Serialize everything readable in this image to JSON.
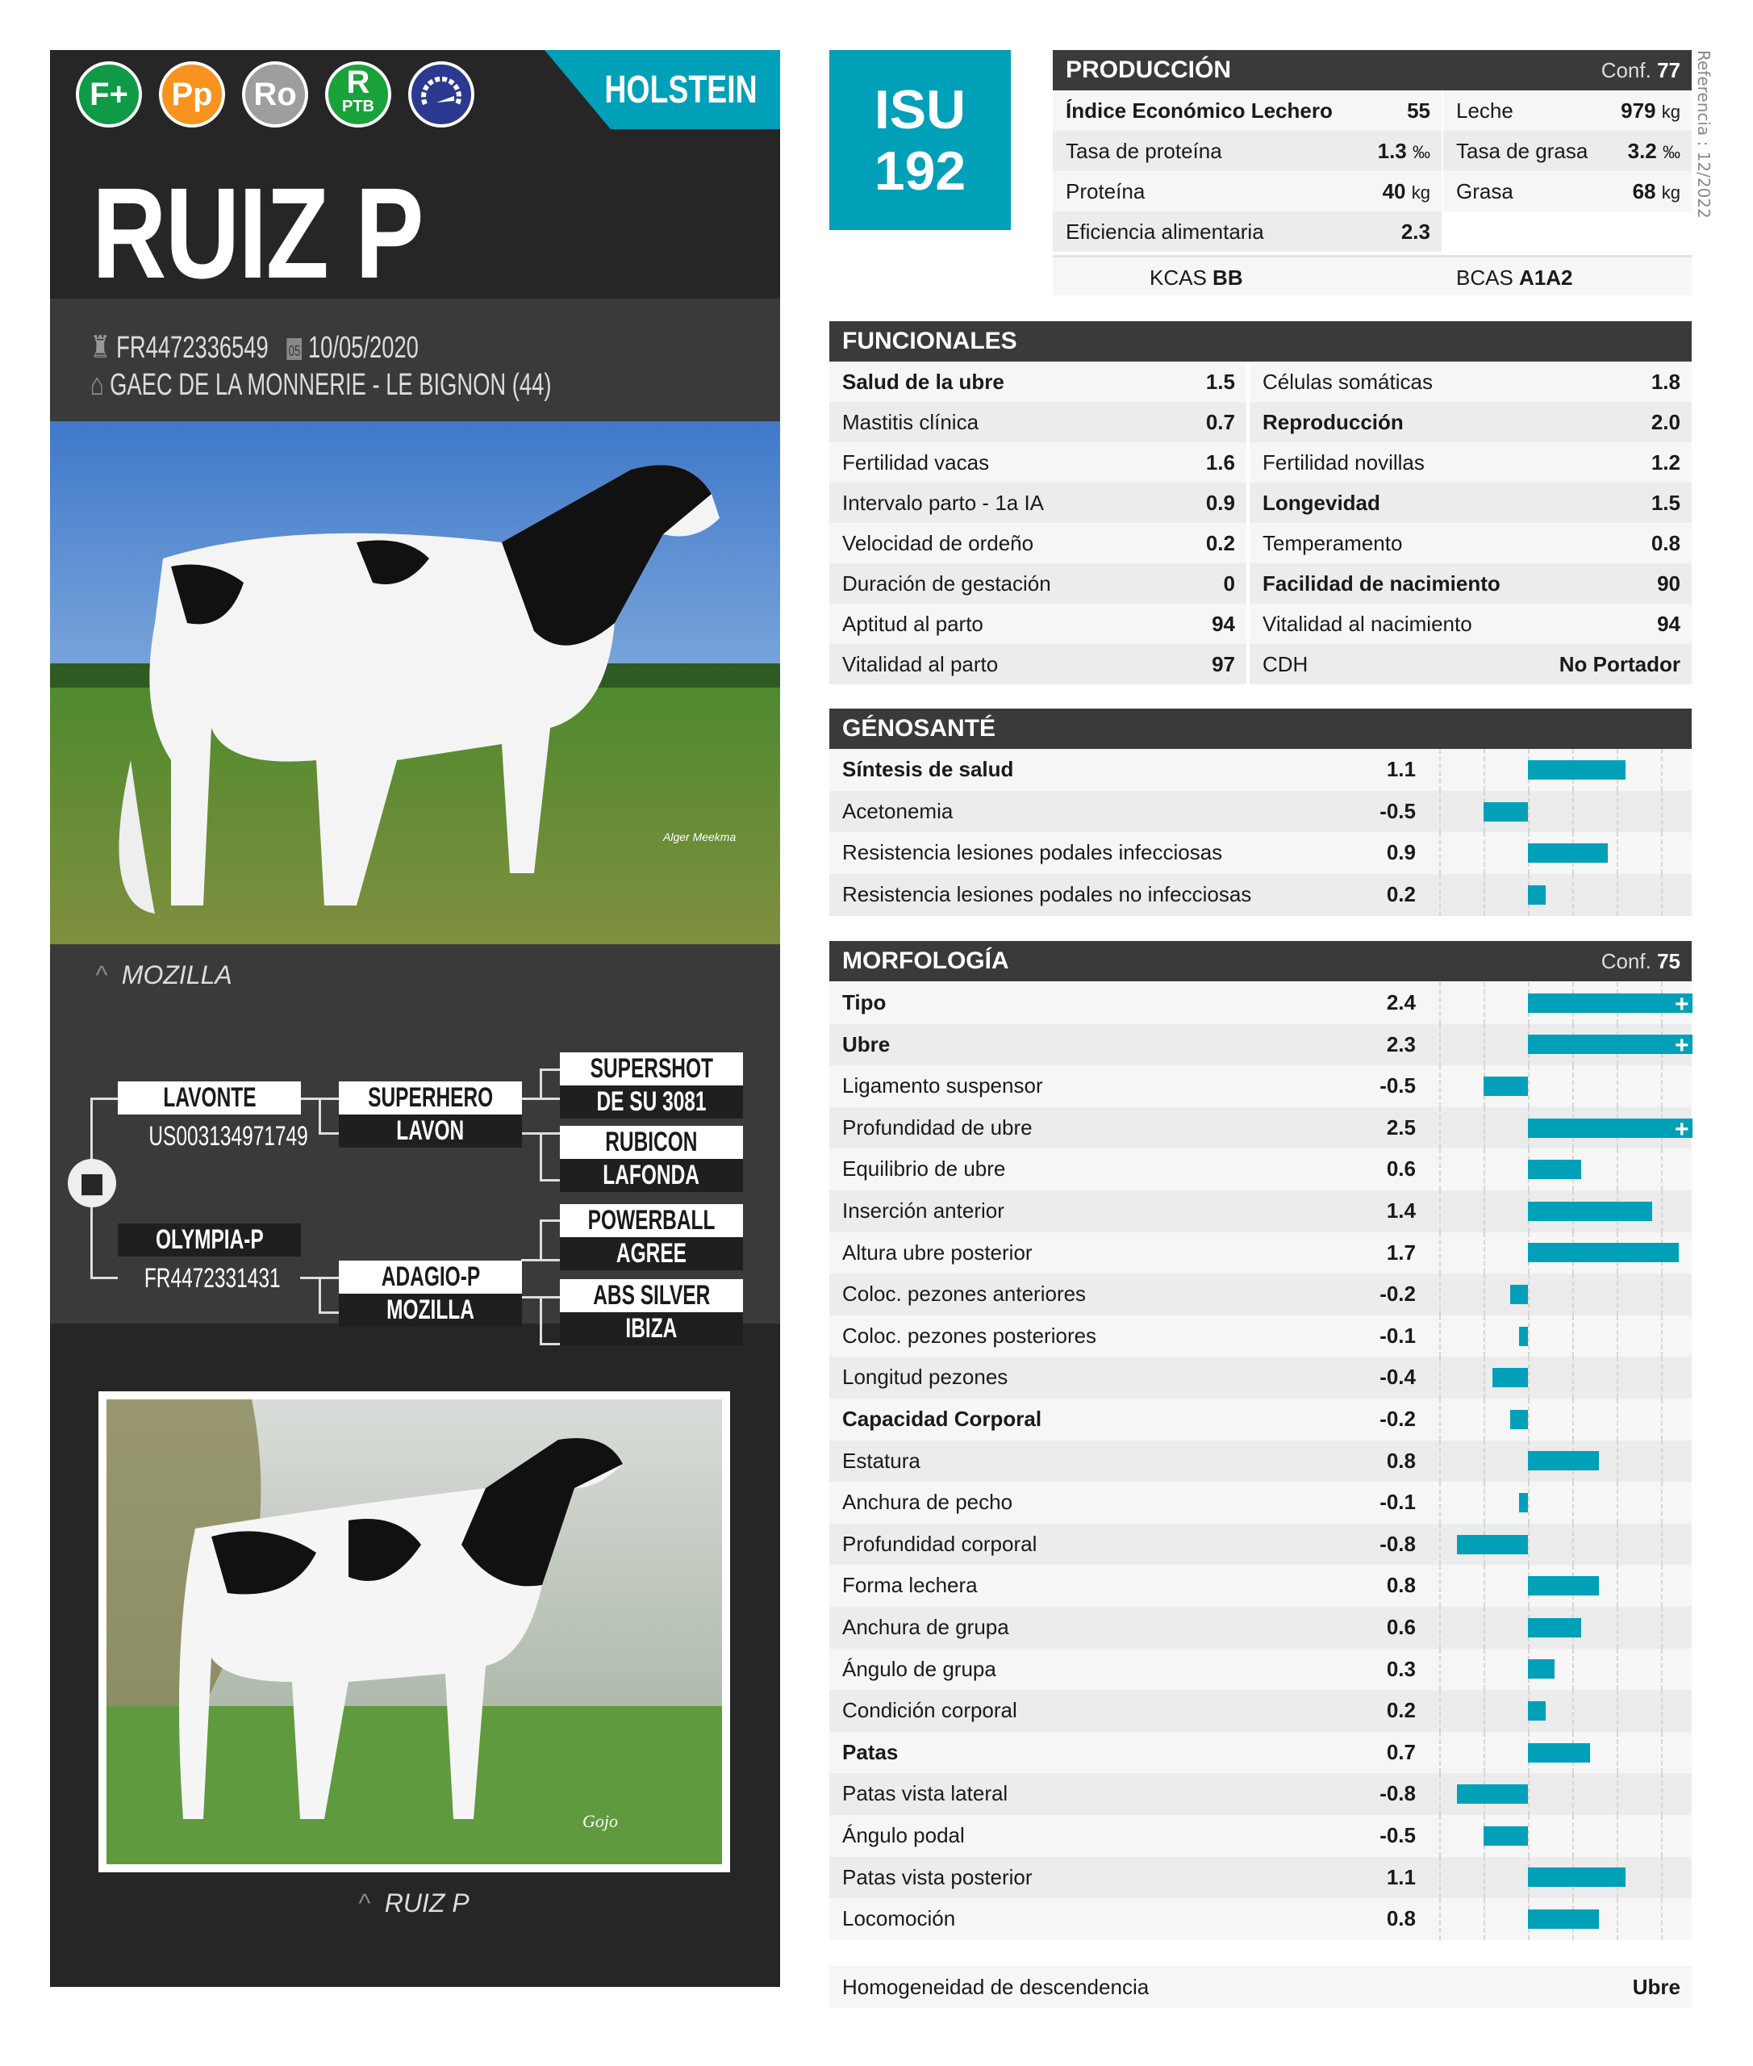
{
  "left": {
    "badges": [
      {
        "icon": "f-plus-badge-icon",
        "label": "F+",
        "color": "#0f9a47"
      },
      {
        "icon": "pp-badge-icon",
        "label": "Pp",
        "color": "#f7931e"
      },
      {
        "icon": "ro-badge-icon",
        "label": "Ro",
        "color": "#9e9e9e"
      },
      {
        "icon": "r-ptb-badge-icon",
        "label": "R",
        "sub": "PTB",
        "color": "#1aa23a"
      },
      {
        "icon": "speedometer-badge-icon",
        "label": "",
        "color": "#2b3990"
      }
    ],
    "breed": "HOLSTEIN",
    "name": "RUIZ P",
    "id": "FR4472336549",
    "birth_date": "10/05/2020",
    "calendar_day": "05",
    "breeder": "GAEC DE LA MONNERIE - LE BIGNON (44)",
    "photo1_credit": "Alger Meekma",
    "dam_caption": "MOZILLA",
    "pedigree": {
      "sire": "LAVONTE",
      "sire_id": "US003134971749",
      "dam": "OLYMPIA-P",
      "dam_id": "FR4472331431",
      "ss": "SUPERHERO",
      "sd": "LAVON",
      "ds": "ADAGIO-P",
      "dd": "MOZILLA",
      "sss": "SUPERSHOT",
      "ssd": "DE SU 3081",
      "sds": "RUBICON",
      "sdd": "LAFONDA",
      "dss": "POWERBALL",
      "dsd": "AGREE",
      "dds": "ABS SILVER",
      "ddd": "IBIZA"
    },
    "photo2_credit": "Gojo",
    "photo2_caption": "RUIZ P"
  },
  "isu": {
    "label": "ISU",
    "value": "192"
  },
  "reference": "Referencia : 12/2022",
  "produccion": {
    "title": "PRODUCCIÓN",
    "conf_label": "Conf.",
    "conf": "77",
    "left": [
      {
        "label": "Índice Económico Lechero",
        "value": "55",
        "unit": "",
        "bold": true
      },
      {
        "label": "Tasa de proteína",
        "value": "1.3",
        "unit": "‰"
      },
      {
        "label": "Proteína",
        "value": "40",
        "unit": "kg"
      },
      {
        "label": "Eficiencia alimentaria",
        "value": "2.3",
        "unit": ""
      }
    ],
    "right": [
      {
        "label": "Leche",
        "value": "979",
        "unit": "kg"
      },
      {
        "label": "Tasa de grasa",
        "value": "3.2",
        "unit": "‰"
      },
      {
        "label": "Grasa",
        "value": "68",
        "unit": "kg"
      }
    ],
    "kcas_label": "KCAS",
    "kcas": "BB",
    "bcas_label": "BCAS",
    "bcas": "A1A2"
  },
  "funcionales": {
    "title": "FUNCIONALES",
    "left": [
      {
        "label": "Salud de la ubre",
        "value": "1.5",
        "bold": true
      },
      {
        "label": "Mastitis clínica",
        "value": "0.7"
      },
      {
        "label": "Fertilidad vacas",
        "value": "1.6"
      },
      {
        "label": "Intervalo parto - 1a IA",
        "value": "0.9"
      },
      {
        "label": "Velocidad de ordeño",
        "value": "0.2"
      },
      {
        "label": "Duración de gestación",
        "value": "0"
      },
      {
        "label": "Aptitud al parto",
        "value": "94"
      },
      {
        "label": "Vitalidad al parto",
        "value": "97"
      }
    ],
    "right": [
      {
        "label": "Células somáticas",
        "value": "1.8"
      },
      {
        "label": "Reproducción",
        "value": "2.0",
        "bold": true
      },
      {
        "label": "Fertilidad novillas",
        "value": "1.2"
      },
      {
        "label": "Longevidad",
        "value": "1.5",
        "bold": true
      },
      {
        "label": "Temperamento",
        "value": "0.8"
      },
      {
        "label": "Facilidad de nacimiento",
        "value": "90",
        "bold": true
      },
      {
        "label": "Vitalidad al nacimiento",
        "value": "94"
      },
      {
        "label": "CDH",
        "value": "No Portador"
      }
    ]
  },
  "genosante": {
    "title": "GÉNOSANTÉ",
    "rows": [
      {
        "label": "Síntesis de salud",
        "value": 1.1,
        "bold": true
      },
      {
        "label": "Acetonemia",
        "value": -0.5
      },
      {
        "label": "Resistencia lesiones podales infecciosas",
        "value": 0.9
      },
      {
        "label": "Resistencia lesiones podales no infecciosas",
        "value": 0.2
      }
    ]
  },
  "morfologia": {
    "title": "MORFOLOGÍA",
    "conf_label": "Conf.",
    "conf": "75",
    "rows": [
      {
        "label": "Tipo",
        "value": 2.4,
        "bold": true
      },
      {
        "label": "Ubre",
        "value": 2.3,
        "bold": true
      },
      {
        "label": "Ligamento suspensor",
        "value": -0.5
      },
      {
        "label": "Profundidad de ubre",
        "value": 2.5
      },
      {
        "label": "Equilibrio de ubre",
        "value": 0.6
      },
      {
        "label": "Inserción anterior",
        "value": 1.4
      },
      {
        "label": "Altura ubre posterior",
        "value": 1.7
      },
      {
        "label": "Coloc. pezones anteriores",
        "value": -0.2
      },
      {
        "label": "Coloc. pezones posteriores",
        "value": -0.1
      },
      {
        "label": "Longitud pezones",
        "value": -0.4
      },
      {
        "label": "Capacidad Corporal",
        "value": -0.2,
        "bold": true
      },
      {
        "label": "Estatura",
        "value": 0.8
      },
      {
        "label": "Anchura de pecho",
        "value": -0.1
      },
      {
        "label": "Profundidad corporal",
        "value": -0.8
      },
      {
        "label": "Forma lechera",
        "value": 0.8
      },
      {
        "label": "Anchura de grupa",
        "value": 0.6
      },
      {
        "label": "Ángulo de grupa",
        "value": 0.3
      },
      {
        "label": "Condición corporal",
        "value": 0.2
      },
      {
        "label": "Patas",
        "value": 0.7,
        "bold": true
      },
      {
        "label": "Patas vista lateral",
        "value": -0.8
      },
      {
        "label": "Ángulo podal",
        "value": -0.5
      },
      {
        "label": "Patas vista posterior",
        "value": 1.1
      },
      {
        "label": "Locomoción",
        "value": 0.8
      }
    ]
  },
  "bar_scale": {
    "min": -1.5,
    "max": 1.85,
    "gridlines": [
      -1,
      -0.5,
      0,
      0.5,
      1,
      1.5
    ],
    "overflow_marker": "+",
    "color": "#00a0b9"
  },
  "homogeneidad": {
    "label": "Homogeneidad de descendencia",
    "value": "Ubre"
  }
}
